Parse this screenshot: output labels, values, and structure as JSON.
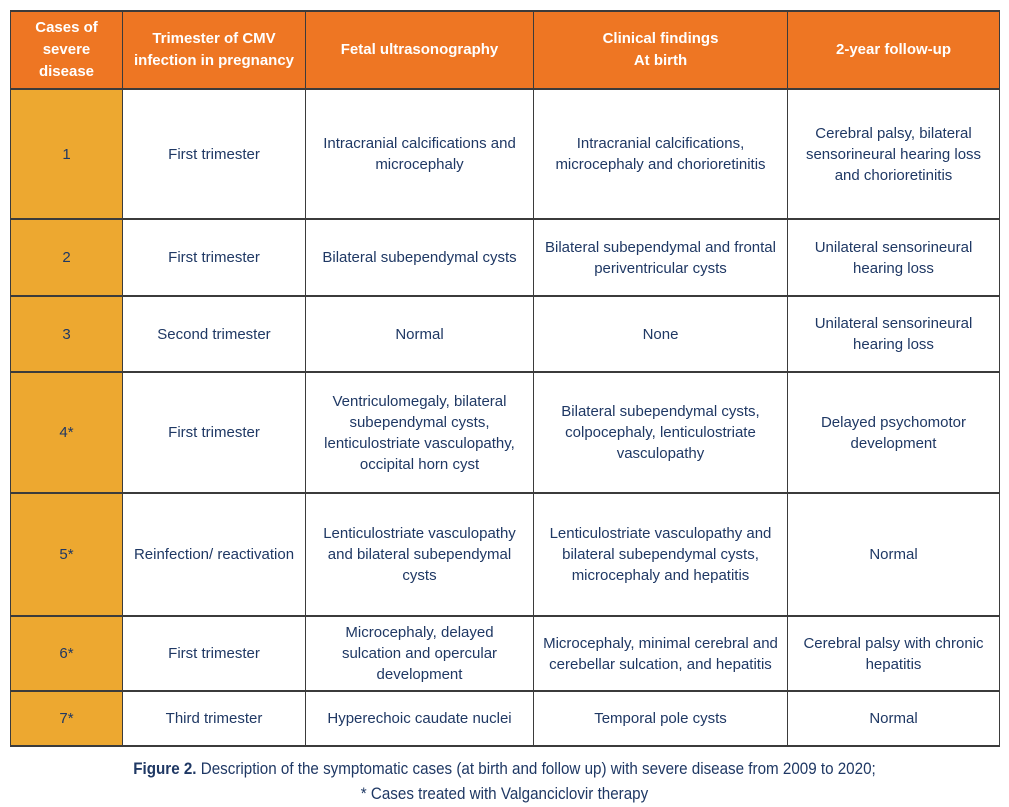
{
  "colors": {
    "header_bg": "#ee7623",
    "case_column_bg": "#eda830",
    "text": "#1f3864",
    "border": "#3b3b3b"
  },
  "table": {
    "headers": [
      "Cases of severe disease",
      "Trimester of CMV infection in pregnancy",
      "Fetal ultrasonography",
      "Clinical findings\nAt birth",
      "2-year follow-up"
    ],
    "rows": [
      {
        "case": "1",
        "trimester": "First trimester",
        "ultrasonography": "Intracranial calcifications and microcephaly",
        "clinical_findings": "Intracranial calcifications, microcephaly and chorioretinitis",
        "follow_up": "Cerebral palsy,  bilateral sensorineural hearing loss and chorioretinitis"
      },
      {
        "case": "2",
        "trimester": "First trimester",
        "ultrasonography": "Bilateral subependymal cysts",
        "clinical_findings": "Bilateral subependymal and frontal periventricular cysts",
        "follow_up": "Unilateral sensorineural hearing loss"
      },
      {
        "case": "3",
        "trimester": "Second trimester",
        "ultrasonography": "Normal",
        "clinical_findings": "None",
        "follow_up": "Unilateral sensorineural hearing loss"
      },
      {
        "case": "4*",
        "trimester": "First trimester",
        "ultrasonography": "Ventriculomegaly, bilateral subependymal cysts, lenticulostriate vasculopathy, occipital horn cyst",
        "clinical_findings": "Bilateral subependymal cysts, colpocephaly, lenticulostriate vasculopathy",
        "follow_up": "Delayed psychomotor development"
      },
      {
        "case": "5*",
        "trimester": "Reinfection/ reactivation",
        "ultrasonography": "Lenticulostriate vasculopathy and bilateral subependymal cysts",
        "clinical_findings": "Lenticulostriate vasculopathy and bilateral subependymal cysts, microcephaly and hepatitis",
        "follow_up": "Normal"
      },
      {
        "case": "6*",
        "trimester": "First trimester",
        "ultrasonography": "Microcephaly, delayed sulcation and opercular development",
        "clinical_findings": "Microcephaly, minimal cerebral and cerebellar sulcation, and hepatitis",
        "follow_up": "Cerebral palsy with chronic hepatitis"
      },
      {
        "case": "7*",
        "trimester": "Third trimester",
        "ultrasonography": "Hyperechoic caudate nuclei",
        "clinical_findings": "Temporal pole cysts",
        "follow_up": "Normal"
      }
    ]
  },
  "caption": {
    "label": "Figure 2.",
    "line1": " Description of the symptomatic cases (at birth and follow up) with severe disease from 2009 to 2020;",
    "line2": "* Cases treated with Valganciclovir therapy"
  }
}
